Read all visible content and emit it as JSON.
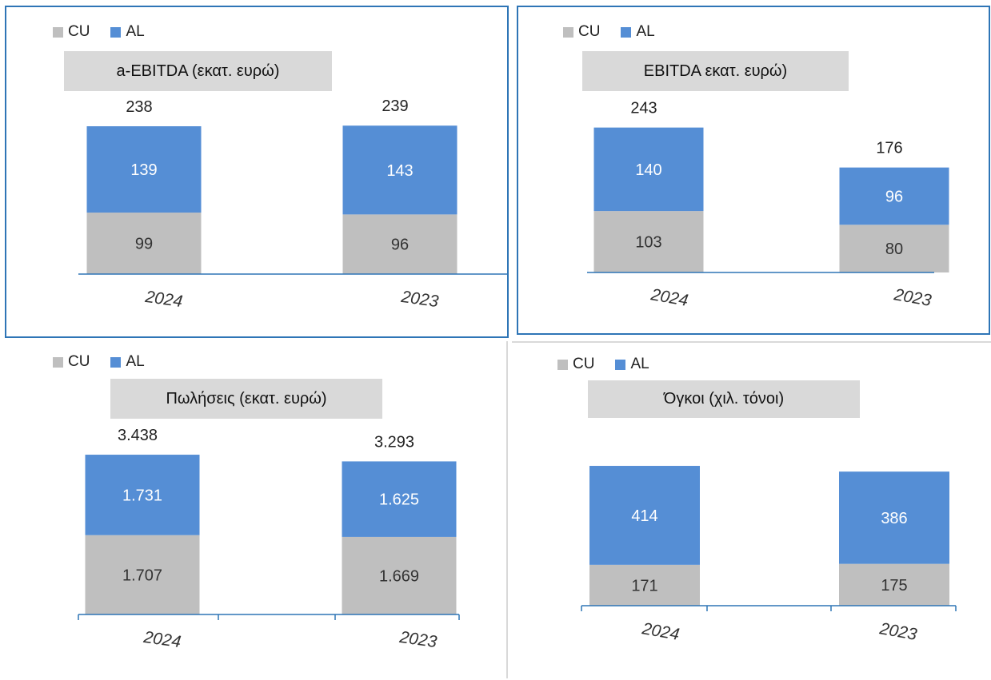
{
  "colors": {
    "cu": "#bfbfbf",
    "al": "#558ed5",
    "axis": "#2e75b6",
    "border": "#2e75b6",
    "title_bg": "#d9d9d9"
  },
  "legend": {
    "cu": "CU",
    "al": "AL"
  },
  "chart_data": [
    {
      "type": "bar",
      "stacked": true,
      "title": "a-EBITDA (εκατ. ευρώ)",
      "categories": [
        "2024",
        "2023"
      ],
      "series": [
        {
          "name": "CU",
          "values": [
            "99",
            "96"
          ]
        },
        {
          "name": "AL",
          "values": [
            "139",
            "143"
          ]
        }
      ],
      "totals": [
        "238",
        "239"
      ],
      "legend_position": "top-left"
    },
    {
      "type": "bar",
      "stacked": true,
      "title": "EBITDA εκατ. ευρώ)",
      "categories": [
        "2024",
        "2023"
      ],
      "series": [
        {
          "name": "CU",
          "values": [
            "103",
            "80"
          ]
        },
        {
          "name": "AL",
          "values": [
            "140",
            "96"
          ]
        }
      ],
      "totals": [
        "243",
        "176"
      ],
      "legend_position": "top-left"
    },
    {
      "type": "bar",
      "stacked": true,
      "title": "Πωλήσεις (εκατ. ευρώ)",
      "categories": [
        "2024",
        "2023"
      ],
      "series": [
        {
          "name": "CU",
          "values": [
            "1.707",
            "1.669"
          ]
        },
        {
          "name": "AL",
          "values": [
            "1.731",
            "1.625"
          ]
        }
      ],
      "totals": [
        "3.438",
        "3.293"
      ],
      "legend_position": "top-left"
    },
    {
      "type": "bar",
      "stacked": true,
      "title": "Όγκοι (χιλ. τόνοι)",
      "categories": [
        "2024",
        "2023"
      ],
      "series": [
        {
          "name": "CU",
          "values": [
            "171",
            "175"
          ]
        },
        {
          "name": "AL",
          "values": [
            "414",
            "386"
          ]
        }
      ],
      "totals": [
        "",
        ""
      ],
      "legend_position": "top-left"
    }
  ]
}
